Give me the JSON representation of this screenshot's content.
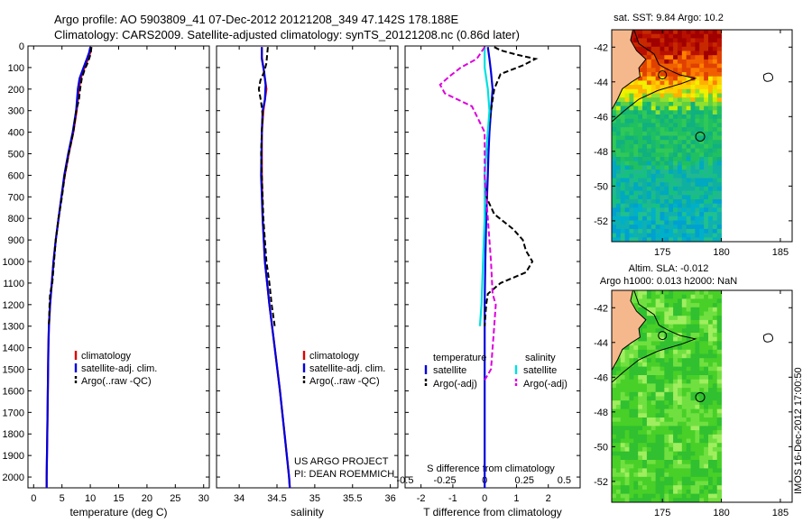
{
  "header": {
    "line1": "Argo profile: AO 5903809_41 07-Dec-2012 20121208_349 47.142S 178.188E",
    "line2": "Climatology: CARS2009. Satellite-adjusted climatology: synTS_20121208.nc (0.86d later)"
  },
  "chart_data": [
    {
      "type": "line",
      "id": "temperature",
      "xlabel": "temperature (deg C)",
      "xlim": [
        -1,
        31
      ],
      "xticks": [
        "0",
        "5",
        "10",
        "15",
        "20",
        "25",
        "30"
      ],
      "ylim": [
        2050,
        0
      ],
      "yticks": [
        "0",
        "100",
        "200",
        "300",
        "400",
        "500",
        "600",
        "700",
        "800",
        "900",
        "1000",
        "1100",
        "1200",
        "1300",
        "1400",
        "1500",
        "1600",
        "1700",
        "1800",
        "1900",
        "2000"
      ],
      "legend": [
        "climatology",
        "satellite-adj. clim.",
        "Argo(..raw -QC)"
      ],
      "series": [
        {
          "name": "climatology",
          "color": "#dd0000",
          "dash": "",
          "points": [
            [
              10.2,
              5
            ],
            [
              10.0,
              30
            ],
            [
              9.6,
              60
            ],
            [
              9.0,
              100
            ],
            [
              8.3,
              150
            ],
            [
              8.0,
              200
            ],
            [
              7.6,
              300
            ],
            [
              7.0,
              400
            ],
            [
              6.2,
              500
            ],
            [
              5.5,
              600
            ],
            [
              4.9,
              700
            ],
            [
              4.4,
              800
            ],
            [
              3.9,
              900
            ],
            [
              3.5,
              1000
            ],
            [
              3.2,
              1100
            ],
            [
              2.9,
              1200
            ],
            [
              2.7,
              1300
            ],
            [
              2.6,
              1400
            ],
            [
              2.5,
              1600
            ],
            [
              2.4,
              1800
            ],
            [
              2.3,
              2000
            ],
            [
              2.3,
              2050
            ]
          ]
        },
        {
          "name": "satellite-adj. clim.",
          "color": "#0000dd",
          "dash": "",
          "points": [
            [
              10.0,
              5
            ],
            [
              9.8,
              30
            ],
            [
              9.4,
              60
            ],
            [
              8.8,
              100
            ],
            [
              8.1,
              150
            ],
            [
              7.8,
              200
            ],
            [
              7.5,
              300
            ],
            [
              6.9,
              400
            ],
            [
              6.1,
              500
            ],
            [
              5.4,
              600
            ],
            [
              4.9,
              700
            ],
            [
              4.4,
              800
            ],
            [
              3.9,
              900
            ],
            [
              3.5,
              1000
            ],
            [
              3.2,
              1100
            ],
            [
              2.9,
              1200
            ],
            [
              2.7,
              1300
            ],
            [
              2.6,
              1400
            ],
            [
              2.5,
              1600
            ],
            [
              2.4,
              1800
            ],
            [
              2.3,
              2000
            ],
            [
              2.3,
              2050
            ]
          ]
        },
        {
          "name": "Argo(..raw -QC)",
          "color": "#000000",
          "dash": "6 3",
          "points": [
            [
              10.2,
              5
            ],
            [
              10.1,
              30
            ],
            [
              9.9,
              50
            ],
            [
              9.5,
              80
            ],
            [
              9.0,
              110
            ],
            [
              8.5,
              150
            ],
            [
              8.2,
              200
            ],
            [
              8.0,
              250
            ],
            [
              7.5,
              300
            ],
            [
              7.0,
              400
            ],
            [
              6.2,
              500
            ],
            [
              5.5,
              600
            ],
            [
              5.0,
              700
            ],
            [
              4.4,
              800
            ],
            [
              3.9,
              900
            ],
            [
              3.6,
              1000
            ],
            [
              3.3,
              1100
            ],
            [
              2.9,
              1150
            ],
            [
              2.8,
              1200
            ],
            [
              2.7,
              1300
            ]
          ]
        }
      ]
    },
    {
      "type": "line",
      "id": "salinity",
      "xlabel": "salinity",
      "xlim": [
        33.7,
        36.1
      ],
      "xticks": [
        "34",
        "34.5",
        "35",
        "35.5",
        "36"
      ],
      "ylim": [
        2050,
        0
      ],
      "legend": [
        "climatology",
        "satellite-adj. clim.",
        "Argo(..raw -QC)"
      ],
      "series": [
        {
          "name": "climatology",
          "color": "#dd0000",
          "dash": "",
          "points": [
            [
              34.3,
              5
            ],
            [
              34.3,
              50
            ],
            [
              34.32,
              100
            ],
            [
              34.34,
              150
            ],
            [
              34.36,
              200
            ],
            [
              34.32,
              300
            ],
            [
              34.3,
              400
            ],
            [
              34.3,
              600
            ],
            [
              34.31,
              800
            ],
            [
              34.34,
              1000
            ],
            [
              34.4,
              1200
            ],
            [
              34.47,
              1400
            ],
            [
              34.54,
              1600
            ],
            [
              34.6,
              1800
            ],
            [
              34.66,
              2000
            ],
            [
              34.67,
              2050
            ]
          ]
        },
        {
          "name": "satellite-adj. clim.",
          "color": "#0000dd",
          "dash": "",
          "points": [
            [
              34.3,
              5
            ],
            [
              34.3,
              60
            ],
            [
              34.33,
              120
            ],
            [
              34.35,
              180
            ],
            [
              34.34,
              250
            ],
            [
              34.31,
              300
            ],
            [
              34.3,
              400
            ],
            [
              34.29,
              600
            ],
            [
              34.31,
              800
            ],
            [
              34.34,
              1000
            ],
            [
              34.4,
              1200
            ],
            [
              34.47,
              1400
            ],
            [
              34.54,
              1600
            ],
            [
              34.6,
              1800
            ],
            [
              34.66,
              2000
            ],
            [
              34.67,
              2050
            ]
          ]
        },
        {
          "name": "Argo(..raw -QC)",
          "color": "#000000",
          "dash": "6 3",
          "points": [
            [
              34.38,
              5
            ],
            [
              34.37,
              40
            ],
            [
              34.36,
              80
            ],
            [
              34.33,
              120
            ],
            [
              34.28,
              160
            ],
            [
              34.26,
              200
            ],
            [
              34.29,
              260
            ],
            [
              34.31,
              320
            ],
            [
              34.3,
              400
            ],
            [
              34.29,
              500
            ],
            [
              34.3,
              600
            ],
            [
              34.31,
              700
            ],
            [
              34.32,
              800
            ],
            [
              34.34,
              900
            ],
            [
              34.36,
              1000
            ],
            [
              34.4,
              1100
            ],
            [
              34.43,
              1200
            ],
            [
              34.47,
              1300
            ]
          ]
        }
      ]
    },
    {
      "type": "line",
      "id": "difference",
      "xlabel": "T difference from climatology",
      "xlabel2": "S difference from climatology",
      "xlim": [
        -2.5,
        3
      ],
      "xticks": [
        "-2",
        "-1",
        "0",
        "1",
        "2"
      ],
      "xticks2": [
        "-0.5",
        "-0.25",
        "0",
        "0.25",
        "0.5"
      ],
      "ylim": [
        2050,
        0
      ],
      "legend_groups": [
        {
          "title": "temperature",
          "items": [
            "satellite",
            "Argo(-adj)"
          ]
        },
        {
          "title": "salinity",
          "items": [
            "satellite",
            "Argo(-adj)"
          ]
        }
      ],
      "series": [
        {
          "name": "temperature satellite",
          "color": "#0000dd",
          "dash": "",
          "points": [
            [
              0.1,
              5
            ],
            [
              0.15,
              60
            ],
            [
              0.2,
              120
            ],
            [
              0.25,
              200
            ],
            [
              0.2,
              300
            ],
            [
              0.15,
              400
            ],
            [
              0.12,
              500
            ],
            [
              0.1,
              600
            ],
            [
              0.05,
              800
            ],
            [
              0.02,
              1000
            ],
            [
              0.0,
              1200
            ],
            [
              0.0,
              1500
            ],
            [
              0.0,
              2050
            ]
          ]
        },
        {
          "name": "temperature Argo(-adj)",
          "color": "#000000",
          "dash": "6 3",
          "points": [
            [
              0.3,
              5
            ],
            [
              0.5,
              20
            ],
            [
              1.0,
              40
            ],
            [
              1.6,
              60
            ],
            [
              1.2,
              90
            ],
            [
              0.5,
              130
            ],
            [
              0.3,
              200
            ],
            [
              0.2,
              300
            ],
            [
              0.1,
              400
            ],
            [
              0.05,
              500
            ],
            [
              0.0,
              600
            ],
            [
              0.05,
              700
            ],
            [
              0.3,
              780
            ],
            [
              0.9,
              850
            ],
            [
              1.2,
              900
            ],
            [
              1.3,
              950
            ],
            [
              1.5,
              1000
            ],
            [
              1.3,
              1050
            ],
            [
              0.5,
              1100
            ],
            [
              0.1,
              1150
            ],
            [
              0.05,
              1200
            ],
            [
              0.0,
              1300
            ]
          ]
        },
        {
          "name": "salinity satellite",
          "color": "#00e0e0",
          "dash": "",
          "points": [
            [
              0.0,
              5
            ],
            [
              0.0,
              100
            ],
            [
              0.02,
              200
            ],
            [
              0.03,
              300
            ],
            [
              0.02,
              400
            ],
            [
              0.0,
              600
            ],
            [
              0.0,
              800
            ],
            [
              -0.01,
              1000
            ],
            [
              -0.02,
              1200
            ],
            [
              -0.03,
              1300
            ]
          ]
        },
        {
          "name": "salinity Argo(-adj)",
          "color": "#dd00dd",
          "dash": "6 3",
          "points": [
            [
              0.0,
              5
            ],
            [
              -0.05,
              60
            ],
            [
              -0.15,
              100
            ],
            [
              -0.22,
              140
            ],
            [
              -0.28,
              180
            ],
            [
              -0.25,
              220
            ],
            [
              -0.08,
              280
            ],
            [
              0.0,
              400
            ],
            [
              0.0,
              600
            ],
            [
              0.02,
              800
            ],
            [
              0.04,
              1000
            ],
            [
              0.05,
              1150
            ],
            [
              0.07,
              1200
            ],
            [
              0.06,
              1300
            ],
            [
              0.05,
              1400
            ],
            [
              0.04,
              1500
            ],
            [
              0.0,
              1550
            ]
          ]
        }
      ]
    }
  ],
  "maps": [
    {
      "title": "sat. SST: 9.84 Argo: 10.2",
      "xticks": [
        "175",
        "180",
        "185"
      ],
      "yticks": [
        "-42",
        "-44",
        "-46",
        "-48",
        "-50",
        "-52"
      ]
    },
    {
      "title1": "Altim. SLA: -0.012",
      "title2": "Argo h1000: 0.013 h2000: NaN",
      "xticks": [
        "175",
        "180",
        "185"
      ],
      "yticks": [
        "-42",
        "-44",
        "-46",
        "-48",
        "-50",
        "-52"
      ]
    }
  ],
  "credits": {
    "project": "US ARGO PROJECT",
    "pi": "PI: DEAN ROEMMICH",
    "stamp": "IMOS 16-Dec-2012 17:00:50"
  },
  "colors": {
    "land": "#f5b88c",
    "grid_frame": "#000000"
  }
}
